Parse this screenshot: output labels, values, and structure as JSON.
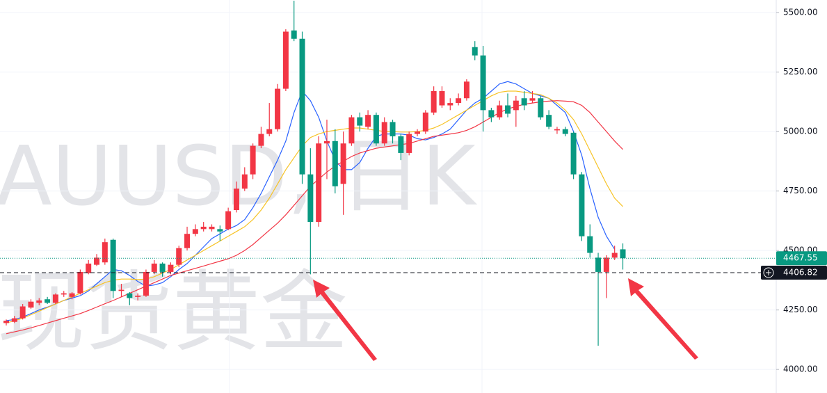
{
  "chart_data": {
    "type": "candlestick",
    "watermark_title": "AUUSD, 日K",
    "watermark_subtitle": "现货黄金",
    "up_color": "#f23645",
    "down_color": "#089981",
    "ylim": [
      3901,
      5553
    ],
    "yticks": [
      {
        "value": 4000,
        "label": "4000.00"
      },
      {
        "value": 4250,
        "label": "4250.00"
      },
      {
        "value": 4500,
        "label": "4500.00"
      },
      {
        "value": 4750,
        "label": "4750.00"
      },
      {
        "value": 5000,
        "label": "5000.00"
      },
      {
        "value": 5250,
        "label": "5250.00"
      },
      {
        "value": 5500,
        "label": "5500.00"
      }
    ],
    "grid": true,
    "open": [
      4195,
      4200,
      4215,
      4260,
      4280,
      4295,
      4280,
      4315,
      4305,
      4320,
      4405,
      4440,
      4450,
      4545,
      4330,
      4320,
      4305,
      4310,
      4410,
      4445,
      4410,
      4440,
      4510,
      4570,
      4590,
      4590,
      4590,
      4590,
      4670,
      4760,
      4820,
      4940,
      4990,
      5010,
      5180,
      5425,
      5390,
      4820,
      4620,
      4950,
      4960,
      4780,
      4950,
      5060,
      5020,
      5070,
      4950,
      5040,
      4980,
      4910,
      4990,
      5000,
      5080,
      5110,
      5110,
      5120,
      5140,
      5355,
      5320,
      5090,
      5060,
      5110,
      5090,
      5140,
      5130,
      5140,
      5070,
      5005,
      5010,
      4995,
      4820,
      4560,
      4470,
      4410,
      4470,
      4505
    ],
    "high": [
      4210,
      4225,
      4275,
      4295,
      4300,
      4305,
      4320,
      4330,
      4325,
      4420,
      4460,
      4485,
      4550,
      4550,
      4360,
      4325,
      4320,
      4420,
      4460,
      4450,
      4450,
      4520,
      4600,
      4610,
      4620,
      4610,
      4605,
      4680,
      4790,
      4850,
      4950,
      5020,
      5120,
      5200,
      5430,
      5550,
      5420,
      4930,
      4980,
      5050,
      5010,
      5000,
      5070,
      5080,
      5090,
      5080,
      5060,
      5050,
      4990,
      5000,
      5010,
      5090,
      5190,
      5190,
      5140,
      5160,
      5220,
      5380,
      5360,
      5100,
      5130,
      5160,
      5150,
      5170,
      5170,
      5150,
      5090,
      5020,
      5020,
      5000,
      4830,
      4610,
      4490,
      4480,
      4520,
      4530
    ],
    "low": [
      4185,
      4195,
      4210,
      4255,
      4270,
      4275,
      4275,
      4305,
      4295,
      4315,
      4400,
      4435,
      4440,
      4300,
      4305,
      4270,
      4290,
      4305,
      4400,
      4390,
      4400,
      4430,
      4500,
      4560,
      4580,
      4580,
      4540,
      4585,
      4660,
      4750,
      4800,
      4930,
      4980,
      5000,
      5170,
      5380,
      4780,
      4400,
      4600,
      4800,
      4740,
      4650,
      4940,
      5000,
      5010,
      4940,
      4940,
      4950,
      4880,
      4900,
      4980,
      4990,
      5070,
      5100,
      5090,
      5110,
      5130,
      5300,
      5000,
      5040,
      5050,
      5060,
      5020,
      5090,
      5120,
      5050,
      5010,
      4990,
      4980,
      4800,
      4540,
      4470,
      4100,
      4300,
      4460,
      4420
    ],
    "close": [
      4205,
      4215,
      4265,
      4285,
      4290,
      4280,
      4315,
      4320,
      4320,
      4410,
      4445,
      4470,
      4535,
      4330,
      4335,
      4300,
      4310,
      4410,
      4445,
      4410,
      4440,
      4510,
      4570,
      4590,
      4600,
      4600,
      4580,
      4665,
      4760,
      4820,
      4940,
      4990,
      5010,
      5180,
      5420,
      5390,
      4820,
      4620,
      4950,
      4960,
      4770,
      4950,
      5060,
      5025,
      5070,
      4950,
      5040,
      4980,
      4910,
      4990,
      5000,
      5080,
      5170,
      5170,
      5120,
      5140,
      5210,
      5320,
      5090,
      5060,
      5110,
      5075,
      5130,
      5110,
      5140,
      5060,
      5020,
      5010,
      4990,
      4820,
      4560,
      4490,
      4410,
      4470,
      4490,
      4467.55
    ],
    "series": [
      {
        "color": "#2962ff",
        "values": [
          4205,
          4210,
          4220,
          4235,
          4250,
          4262,
          4275,
          4290,
          4300,
          4310,
          4330,
          4360,
          4390,
          4420,
          4415,
          4395,
          4370,
          4350,
          4355,
          4365,
          4390,
          4420,
          4445,
          4480,
          4515,
          4550,
          4570,
          4590,
          4605,
          4630,
          4680,
          4740,
          4810,
          4880,
          4960,
          5080,
          5170,
          5130,
          5060,
          4960,
          4880,
          4840,
          4840,
          4870,
          4930,
          4980,
          4990,
          4990,
          4990,
          4985,
          4970,
          4965,
          4975,
          4990,
          5010,
          5050,
          5090,
          5120,
          5140,
          5170,
          5200,
          5210,
          5200,
          5180,
          5160,
          5150,
          5140,
          5110,
          5080,
          5000,
          4900,
          4760,
          4640,
          4560,
          4505,
          null
        ]
      },
      {
        "color": "#f7c325",
        "values": [
          4195,
          4205,
          4215,
          4230,
          4245,
          4260,
          4275,
          4290,
          4305,
          4320,
          4335,
          4350,
          4365,
          4375,
          4380,
          4380,
          4378,
          4380,
          4390,
          4405,
          4420,
          4440,
          4460,
          4480,
          4500,
          4520,
          4540,
          4560,
          4580,
          4600,
          4630,
          4670,
          4720,
          4780,
          4840,
          4890,
          4940,
          4975,
          4990,
          5000,
          5005,
          5010,
          5015,
          5015,
          5010,
          5005,
          5000,
          5000,
          4998,
          4998,
          5000,
          5005,
          5015,
          5030,
          5050,
          5070,
          5090,
          5110,
          5130,
          5150,
          5165,
          5170,
          5170,
          5165,
          5160,
          5155,
          5140,
          5120,
          5090,
          5050,
          4990,
          4920,
          4850,
          4780,
          4720,
          4685
        ]
      },
      {
        "color": "#f23645",
        "values": [
          4150,
          4158,
          4166,
          4175,
          4185,
          4195,
          4205,
          4215,
          4225,
          4235,
          4248,
          4262,
          4276,
          4290,
          4305,
          4320,
          4335,
          4350,
          4365,
          4380,
          4395,
          4405,
          4415,
          4425,
          4435,
          4445,
          4455,
          4465,
          4480,
          4500,
          4525,
          4555,
          4585,
          4615,
          4650,
          4690,
          4730,
          4770,
          4800,
          4830,
          4855,
          4875,
          4895,
          4910,
          4920,
          4930,
          4935,
          4940,
          4945,
          4950,
          4960,
          4970,
          4980,
          4985,
          4990,
          4995,
          5005,
          5020,
          5040,
          5060,
          5080,
          5095,
          5105,
          5115,
          5120,
          5125,
          5128,
          5130,
          5128,
          5125,
          5110,
          5080,
          5040,
          5000,
          4960,
          4925
        ]
      }
    ],
    "last_price": {
      "value": 4467.55,
      "label": "4467.55"
    },
    "crosshair": {
      "value": 4406.82,
      "label": "4406.82"
    }
  }
}
